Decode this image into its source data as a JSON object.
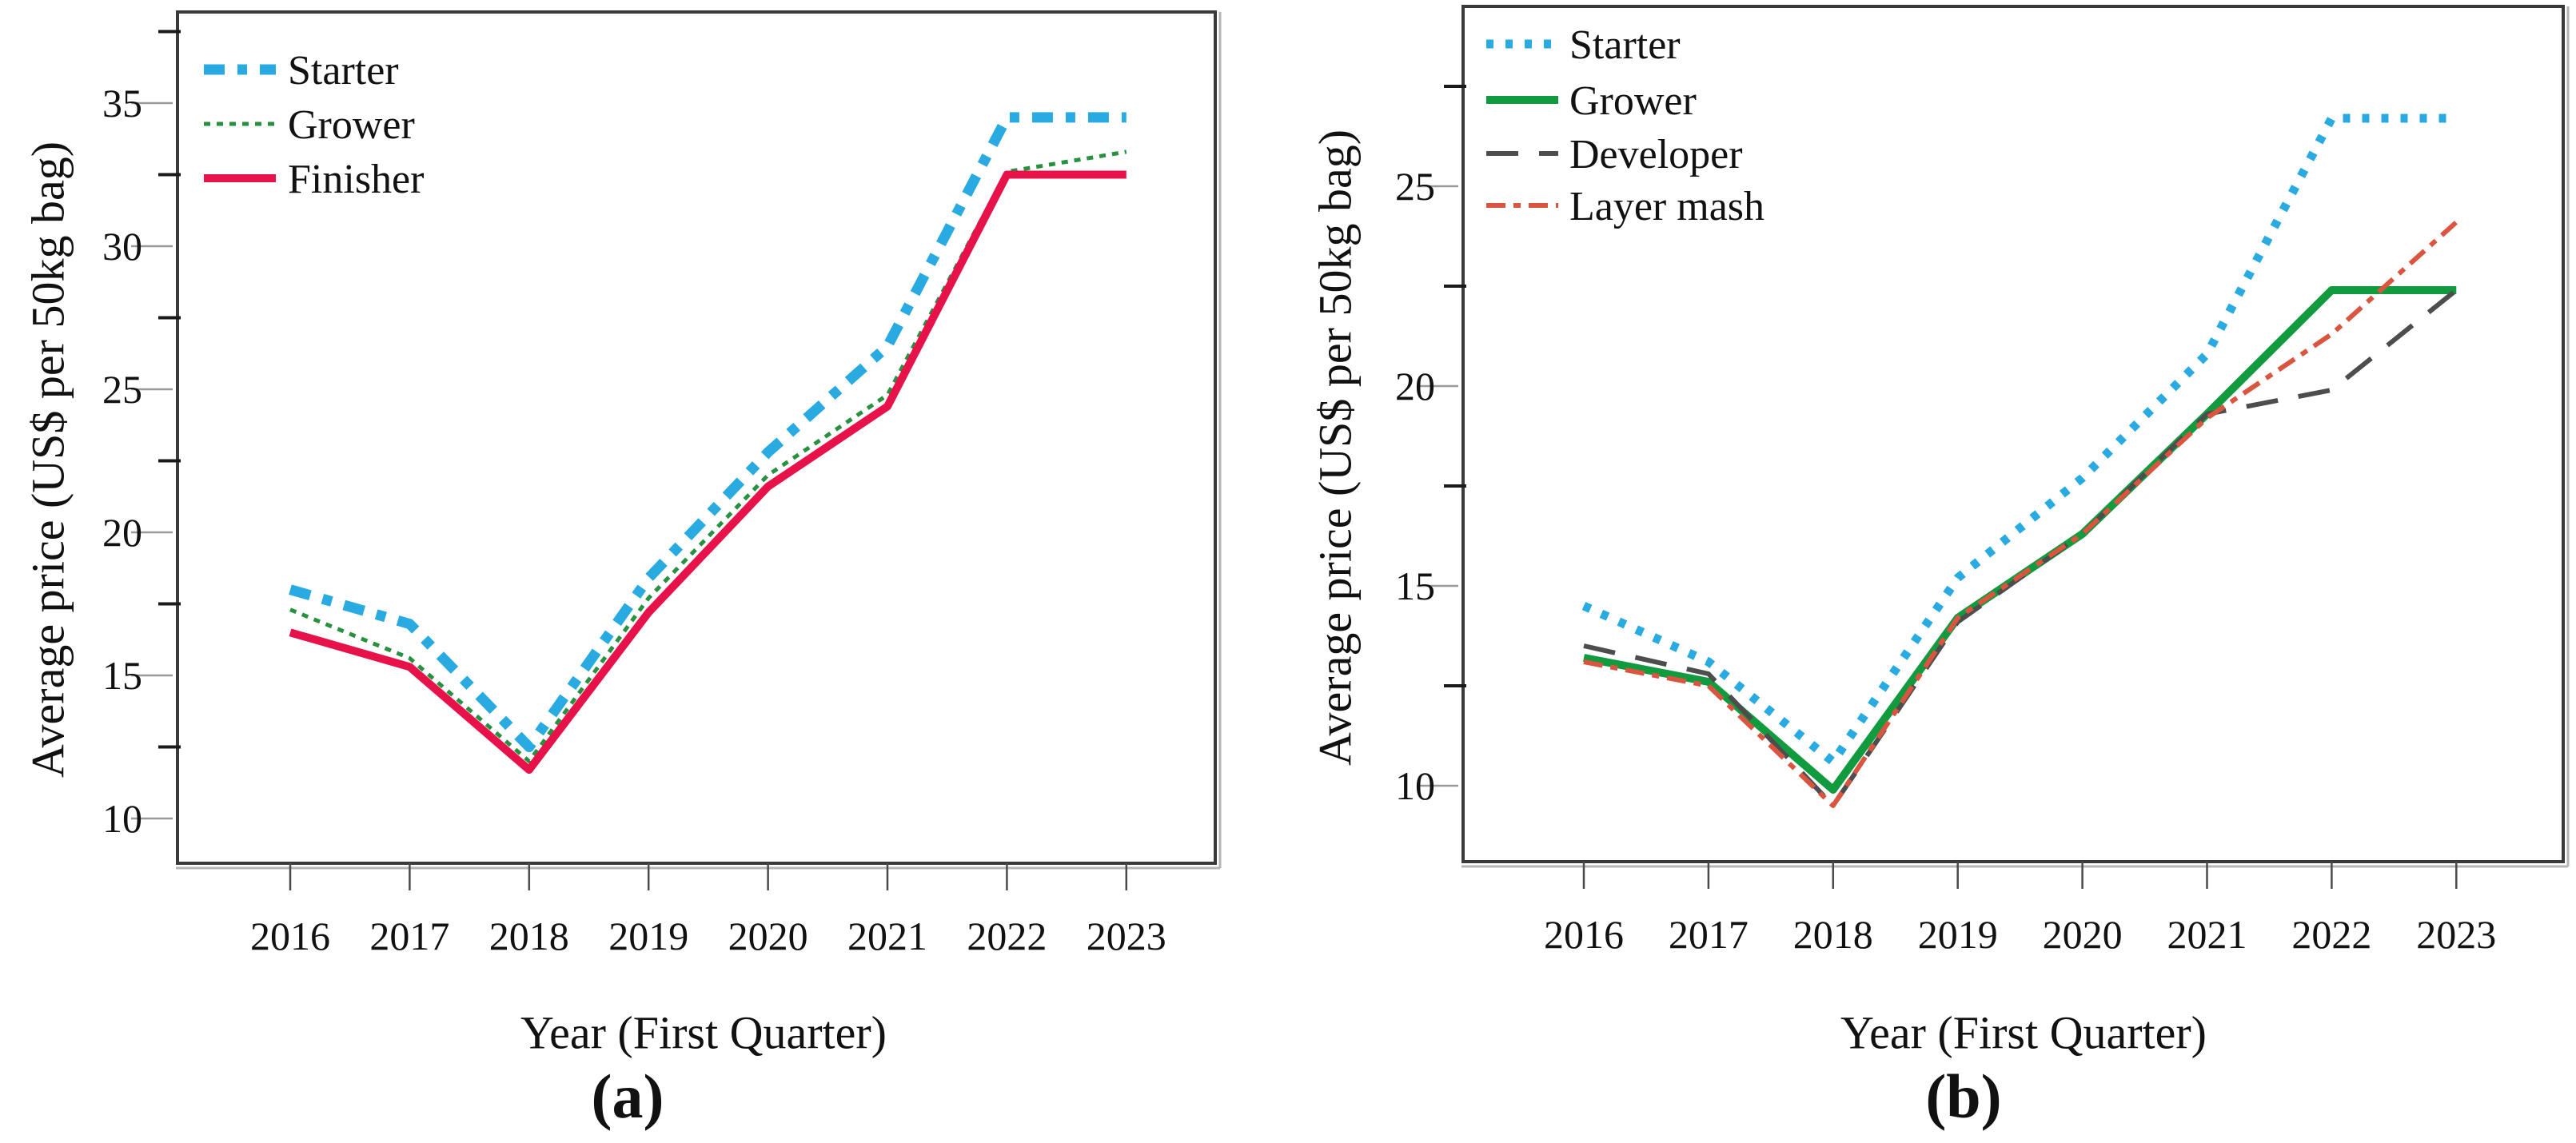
{
  "figure": {
    "description": "Two-panel line chart of average poultry feed prices by year",
    "background": "#FFFFFF",
    "axis_color": "#3A3A3A",
    "text_color": "#111111"
  },
  "chart_data": [
    {
      "type": "line",
      "panel": "a",
      "caption": "(a)",
      "xlabel": "Year (First Quarter)",
      "ylabel": "Average price (US$ per 50kg bag)",
      "x_categories": [
        "2016",
        "2017",
        "2018",
        "2019",
        "2020",
        "2021",
        "2022",
        "2023"
      ],
      "y_ticks_major": [
        10,
        15,
        20,
        25,
        30,
        35
      ],
      "y_ticks_minor": [
        12.5,
        17.5,
        22.5,
        27.5,
        32.5,
        37.5
      ],
      "ylim": [
        8.4,
        38.3
      ],
      "grid": false,
      "legend_position": "top-left-inside",
      "series": [
        {
          "name": "Starter",
          "color": "#29ABE2",
          "line_style": "dashed-thick",
          "values": [
            18.0,
            16.8,
            12.5,
            18.4,
            22.8,
            26.5,
            34.5,
            34.5
          ]
        },
        {
          "name": "Grower",
          "color": "#27913F",
          "line_style": "dotted",
          "values": [
            17.3,
            15.6,
            12.0,
            17.7,
            22.0,
            24.8,
            32.6,
            33.3
          ]
        },
        {
          "name": "Finisher",
          "color": "#E8124A",
          "line_style": "solid",
          "values": [
            16.5,
            15.3,
            11.7,
            17.2,
            21.6,
            24.4,
            32.5,
            32.5
          ]
        }
      ]
    },
    {
      "type": "line",
      "panel": "b",
      "caption": "(b)",
      "xlabel": "Year (First Quarter)",
      "ylabel": "Average price (US$ per 50kg bag)",
      "x_categories": [
        "2016",
        "2017",
        "2018",
        "2019",
        "2020",
        "2021",
        "2022",
        "2023"
      ],
      "y_ticks_major": [
        10,
        15,
        20,
        25
      ],
      "y_ticks_minor": [
        12.5,
        17.5,
        22.5,
        27.5
      ],
      "ylim": [
        8.1,
        29.5
      ],
      "grid": false,
      "legend_position": "top-left-inside",
      "series": [
        {
          "name": "Starter",
          "color": "#29ABE2",
          "line_style": "dotted-thick",
          "values": [
            14.5,
            13.1,
            10.6,
            15.2,
            17.7,
            20.8,
            26.7,
            26.7
          ]
        },
        {
          "name": "Grower",
          "color": "#119B3E",
          "line_style": "solid",
          "values": [
            13.2,
            12.6,
            9.9,
            14.2,
            16.3,
            19.3,
            22.4,
            22.4
          ]
        },
        {
          "name": "Developer",
          "color": "#4D4D4D",
          "line_style": "long-dash",
          "values": [
            13.5,
            12.8,
            9.5,
            14.1,
            16.3,
            19.3,
            19.9,
            22.4
          ]
        },
        {
          "name": "Layer mash",
          "color": "#D95540",
          "line_style": "dash-dot",
          "values": [
            13.1,
            12.5,
            9.5,
            14.2,
            16.3,
            19.2,
            21.3,
            24.1
          ]
        }
      ]
    }
  ]
}
